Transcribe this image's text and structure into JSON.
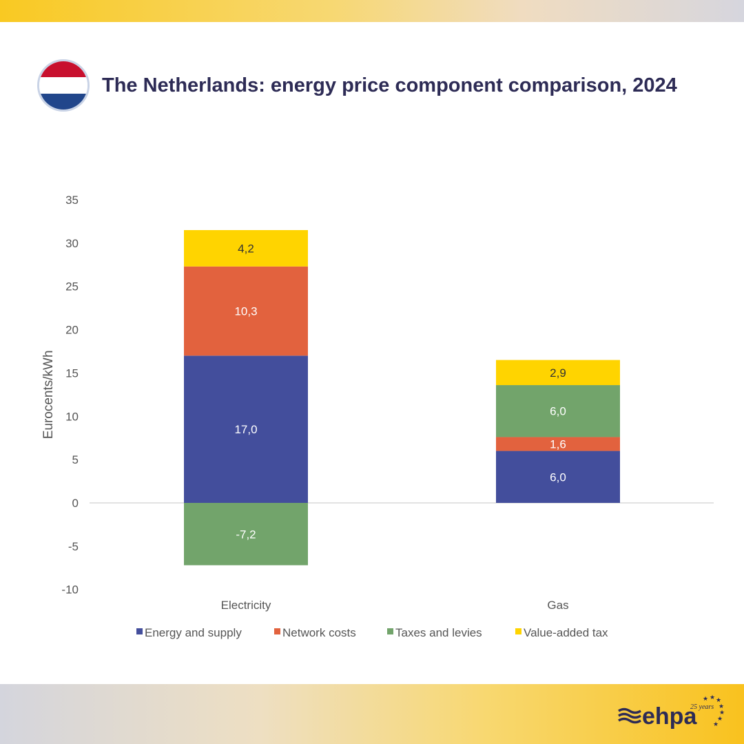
{
  "header": {
    "title": "The Netherlands: energy price component comparison, 2024",
    "flag_icon": "netherlands-flag-icon",
    "flag_colors": [
      "#c8102e",
      "#ffffff",
      "#21468b"
    ]
  },
  "footer": {
    "logo_text": "ehpa",
    "logo_tagline": "25 years"
  },
  "chart_data": {
    "type": "bar",
    "stacked": true,
    "title": "",
    "xlabel": "",
    "ylabel": "Eurocents/kWh",
    "ylim": [
      -10,
      35
    ],
    "yticks": [
      -10,
      -5,
      0,
      5,
      10,
      15,
      20,
      25,
      30,
      35
    ],
    "grid": false,
    "legend_position": "bottom",
    "categories": [
      "Electricity",
      "Gas"
    ],
    "series": [
      {
        "name": "Energy and supply",
        "color": "#434e9c",
        "values": [
          17.0,
          6.0
        ],
        "labels": [
          "17,0",
          "6,0"
        ],
        "label_color": "#ffffff"
      },
      {
        "name": "Network costs",
        "color": "#e2623e",
        "values": [
          10.3,
          1.6
        ],
        "labels": [
          "10,3",
          "1,6"
        ],
        "label_color": "#ffffff"
      },
      {
        "name": "Taxes and levies",
        "color": "#72a46b",
        "values": [
          -7.2,
          6.0
        ],
        "labels": [
          "-7,2",
          "6,0"
        ],
        "label_color": "#ffffff"
      },
      {
        "name": "Value-added tax",
        "color": "#ffd400",
        "values": [
          4.2,
          2.9
        ],
        "labels": [
          "4,2",
          "2,9"
        ],
        "label_color": "#333333"
      }
    ]
  }
}
